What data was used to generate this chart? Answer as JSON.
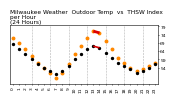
{
  "title": "Milwaukee Weather  Outdoor Temp  vs  THSW Index\nper Hour\n(24 Hours)",
  "hours": [
    0,
    1,
    2,
    3,
    4,
    5,
    6,
    7,
    8,
    9,
    10,
    11,
    12,
    13,
    14,
    15,
    16,
    17,
    18,
    19,
    20,
    21,
    22,
    23
  ],
  "temp": [
    68,
    65,
    62,
    59,
    56,
    54,
    52,
    50,
    52,
    55,
    59,
    62,
    65,
    67,
    66,
    63,
    60,
    57,
    55,
    53,
    51,
    52,
    54,
    56
  ],
  "thsw": [
    72,
    69,
    65,
    61,
    57,
    54,
    51,
    48,
    51,
    56,
    62,
    67,
    72,
    76,
    75,
    70,
    65,
    60,
    57,
    54,
    52,
    53,
    55,
    57
  ],
  "temp_color": "#000000",
  "thsw_color": "#ff8800",
  "red_color": "#dd0000",
  "red_segment_temp": [
    13,
    14
  ],
  "red_segment_thsw": [
    13,
    14
  ],
  "bg_color": "#ffffff",
  "grid_color": "#aaaaaa",
  "grid_hours": [
    3,
    6,
    9,
    12,
    15,
    18,
    21
  ],
  "ylim": [
    44,
    80
  ],
  "ytick_right_vals": [
    54,
    59,
    64,
    69,
    74,
    79
  ],
  "title_fontsize": 4.2,
  "tick_fontsize": 3.2,
  "marker_size_thsw": 1.8,
  "marker_size_temp": 1.4
}
